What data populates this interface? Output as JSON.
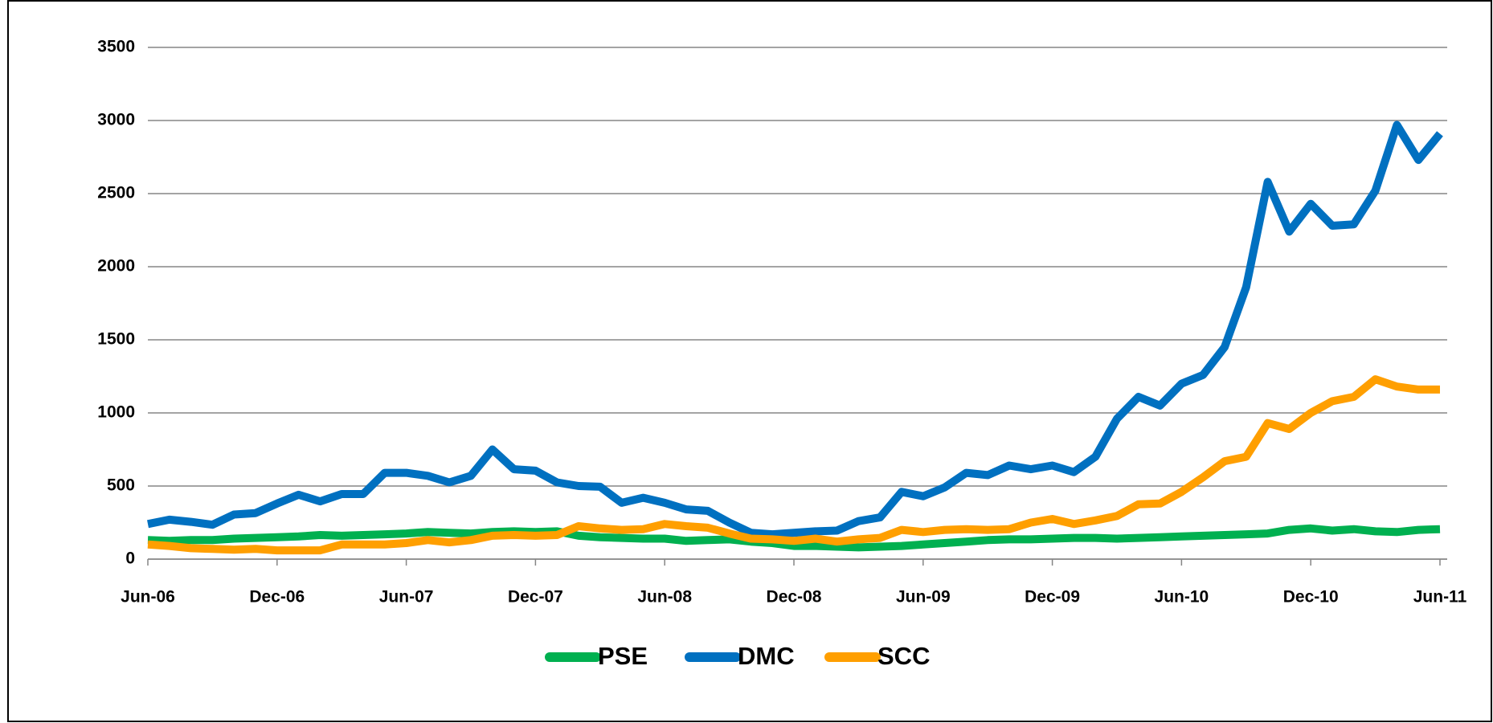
{
  "chart_data": {
    "type": "line",
    "categories": [
      "Jun-06",
      null,
      null,
      null,
      null,
      null,
      "Dec-06",
      null,
      null,
      null,
      null,
      null,
      "Jun-07",
      null,
      null,
      null,
      null,
      null,
      "Dec-07",
      null,
      null,
      null,
      null,
      null,
      "Jun-08",
      null,
      null,
      null,
      null,
      null,
      "Dec-08",
      null,
      null,
      null,
      null,
      null,
      "Jun-09",
      null,
      null,
      null,
      null,
      null,
      "Dec-09",
      null,
      null,
      null,
      null,
      null,
      "Jun-10",
      null,
      null,
      null,
      null,
      null,
      "Dec-10",
      null,
      null,
      null,
      null,
      null,
      "Jun-11"
    ],
    "series": [
      {
        "name": "PSE",
        "color": "#00b050",
        "values": [
          130,
          125,
          130,
          130,
          140,
          145,
          150,
          155,
          165,
          160,
          165,
          170,
          175,
          185,
          180,
          175,
          185,
          190,
          185,
          190,
          160,
          150,
          145,
          140,
          140,
          125,
          130,
          135,
          120,
          110,
          90,
          90,
          85,
          80,
          85,
          90,
          100,
          110,
          120,
          130,
          135,
          135,
          140,
          145,
          145,
          140,
          145,
          150,
          155,
          160,
          165,
          170,
          175,
          200,
          210,
          195,
          205,
          190,
          185,
          200,
          205
        ]
      },
      {
        "name": "DMC",
        "color": "#0070c0",
        "values": [
          240,
          270,
          255,
          235,
          305,
          315,
          380,
          440,
          395,
          445,
          445,
          590,
          590,
          570,
          525,
          570,
          750,
          615,
          605,
          525,
          500,
          495,
          385,
          420,
          385,
          340,
          330,
          250,
          180,
          170,
          180,
          190,
          195,
          260,
          285,
          460,
          430,
          490,
          590,
          575,
          640,
          615,
          640,
          595,
          700,
          960,
          1110,
          1050,
          1200,
          1260,
          1450,
          1860,
          2580,
          2240,
          2430,
          2280,
          2290,
          2520,
          2970,
          2730,
          2910
        ]
      },
      {
        "name": "SCC",
        "color": "#ff9f00",
        "values": [
          100,
          90,
          75,
          70,
          65,
          70,
          60,
          60,
          60,
          100,
          100,
          100,
          110,
          130,
          115,
          130,
          160,
          165,
          160,
          165,
          225,
          210,
          200,
          205,
          240,
          225,
          215,
          175,
          140,
          135,
          125,
          140,
          120,
          135,
          145,
          200,
          185,
          200,
          205,
          200,
          205,
          250,
          275,
          240,
          265,
          295,
          375,
          380,
          460,
          560,
          670,
          700,
          930,
          890,
          1000,
          1080,
          1110,
          1230,
          1180,
          1160,
          1160
        ]
      }
    ],
    "ylim": [
      0,
      3500
    ],
    "yticks": [
      0,
      500,
      1000,
      1500,
      2000,
      2500,
      3000,
      3500
    ],
    "grid": true,
    "legend": "bottom"
  }
}
